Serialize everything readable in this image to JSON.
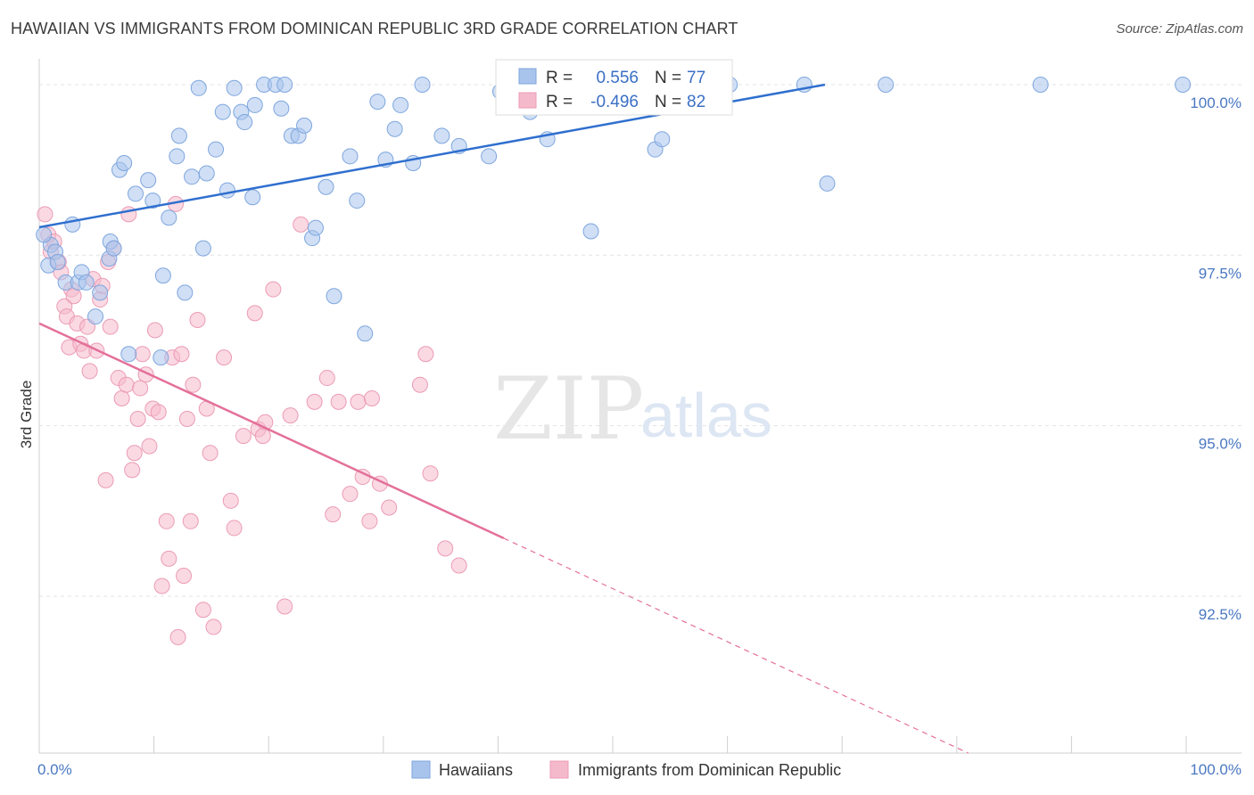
{
  "header": {
    "title": "HAWAIIAN VS IMMIGRANTS FROM DOMINICAN REPUBLIC 3RD GRADE CORRELATION CHART",
    "source": "Source: ZipAtlas.com"
  },
  "watermark": {
    "zip": "ZIP",
    "atlas": "atlas"
  },
  "colors": {
    "blue_fill": "#a9c4ec",
    "blue_stroke": "#7ea6de",
    "blue_line": "#2f6fcf",
    "pink_fill": "#f5b9cc",
    "pink_stroke": "#ec9bb5",
    "pink_line": "#e4709a",
    "grid": "#e3e3e3",
    "axis_text": "#4a78c2"
  },
  "legend_box": {
    "rows": [
      {
        "r_label": "R = ",
        "r_value": "0.556",
        "n_label": "N = ",
        "n_value": "77"
      },
      {
        "r_label": "R = ",
        "r_value": "-0.496",
        "n_label": "N = ",
        "n_value": "82"
      }
    ]
  },
  "chart_data": {
    "type": "scatter",
    "title": "HAWAIIAN VS IMMIGRANTS FROM DOMINICAN REPUBLIC 3RD GRADE CORRELATION CHART",
    "ylabel": "3rd Grade",
    "xlabel": "",
    "xlim": [
      0,
      100
    ],
    "ylim": [
      90.2,
      100.3
    ],
    "x_tick_labels": [
      "0.0%",
      "100.0%"
    ],
    "y_ticks": [
      92.5,
      95.0,
      97.5,
      100.0
    ],
    "y_tick_labels": [
      "92.5%",
      "95.0%",
      "97.5%",
      "100.0%"
    ],
    "grid": true,
    "legend_position": "bottom-center",
    "series": [
      {
        "name": "Hawaiians",
        "r": 0.556,
        "n": 77,
        "trend": {
          "x0": 0,
          "y0": 97.91,
          "x1": 68.5,
          "y1": 100.0
        },
        "points": [
          [
            0.8,
            97.35
          ],
          [
            1.0,
            97.65
          ],
          [
            1.4,
            97.55
          ],
          [
            1.6,
            97.4
          ],
          [
            2.3,
            97.1
          ],
          [
            2.9,
            97.95
          ],
          [
            3.4,
            97.1
          ],
          [
            3.7,
            97.25
          ],
          [
            4.1,
            97.1
          ],
          [
            4.9,
            96.6
          ],
          [
            5.3,
            96.95
          ],
          [
            6.1,
            97.45
          ],
          [
            6.2,
            97.7
          ],
          [
            6.5,
            97.6
          ],
          [
            7.0,
            98.75
          ],
          [
            7.4,
            98.85
          ],
          [
            7.8,
            96.05
          ],
          [
            8.4,
            98.4
          ],
          [
            9.5,
            98.6
          ],
          [
            9.9,
            98.3
          ],
          [
            10.6,
            96.0
          ],
          [
            10.8,
            97.2
          ],
          [
            11.3,
            98.05
          ],
          [
            12.0,
            98.95
          ],
          [
            12.2,
            99.25
          ],
          [
            12.7,
            96.95
          ],
          [
            13.3,
            98.65
          ],
          [
            13.9,
            99.95
          ],
          [
            14.3,
            97.6
          ],
          [
            14.6,
            98.7
          ],
          [
            15.4,
            99.05
          ],
          [
            16.0,
            99.6
          ],
          [
            16.4,
            98.45
          ],
          [
            17.0,
            99.95
          ],
          [
            17.6,
            99.6
          ],
          [
            17.9,
            99.45
          ],
          [
            18.6,
            98.35
          ],
          [
            18.8,
            99.7
          ],
          [
            19.6,
            100.0
          ],
          [
            20.6,
            100.0
          ],
          [
            21.1,
            99.65
          ],
          [
            21.4,
            100.0
          ],
          [
            22.0,
            99.25
          ],
          [
            22.6,
            99.25
          ],
          [
            23.1,
            99.4
          ],
          [
            23.8,
            97.75
          ],
          [
            24.1,
            97.9
          ],
          [
            25.0,
            98.5
          ],
          [
            25.7,
            96.9
          ],
          [
            27.1,
            98.95
          ],
          [
            27.7,
            98.3
          ],
          [
            28.4,
            96.35
          ],
          [
            29.5,
            99.75
          ],
          [
            30.2,
            98.9
          ],
          [
            31.0,
            99.35
          ],
          [
            31.5,
            99.7
          ],
          [
            32.6,
            98.85
          ],
          [
            33.4,
            100.0
          ],
          [
            35.1,
            99.25
          ],
          [
            36.6,
            99.1
          ],
          [
            39.2,
            98.95
          ],
          [
            40.2,
            99.9
          ],
          [
            42.8,
            99.6
          ],
          [
            44.3,
            99.2
          ],
          [
            47.3,
            100.0
          ],
          [
            48.1,
            97.85
          ],
          [
            49.7,
            100.0
          ],
          [
            53.7,
            99.05
          ],
          [
            54.3,
            99.2
          ],
          [
            56.2,
            100.0
          ],
          [
            60.2,
            100.0
          ],
          [
            66.7,
            100.0
          ],
          [
            68.7,
            98.55
          ],
          [
            73.8,
            100.0
          ],
          [
            87.3,
            100.0
          ],
          [
            99.7,
            100.0
          ],
          [
            0.4,
            97.8
          ]
        ]
      },
      {
        "name": "Immigrants from Dominican Republic",
        "r": -0.496,
        "n": 82,
        "trend": {
          "x0": 0,
          "y0": 96.5,
          "x1": 40.5,
          "y1": 93.35,
          "dash_x1": 81.0,
          "dash_y1": 90.2
        },
        "points": [
          [
            0.5,
            98.1
          ],
          [
            0.8,
            97.8
          ],
          [
            1.0,
            97.55
          ],
          [
            1.3,
            97.7
          ],
          [
            1.7,
            97.4
          ],
          [
            1.9,
            97.25
          ],
          [
            2.2,
            96.75
          ],
          [
            2.4,
            96.6
          ],
          [
            2.6,
            96.15
          ],
          [
            2.8,
            97.0
          ],
          [
            3.0,
            96.9
          ],
          [
            3.3,
            96.5
          ],
          [
            3.6,
            96.2
          ],
          [
            3.9,
            96.1
          ],
          [
            4.2,
            96.45
          ],
          [
            4.4,
            95.8
          ],
          [
            4.7,
            97.15
          ],
          [
            5.0,
            96.1
          ],
          [
            5.3,
            96.85
          ],
          [
            5.5,
            97.05
          ],
          [
            5.8,
            94.2
          ],
          [
            6.0,
            97.4
          ],
          [
            6.2,
            96.45
          ],
          [
            6.5,
            97.6
          ],
          [
            6.9,
            95.7
          ],
          [
            7.2,
            95.4
          ],
          [
            7.6,
            95.6
          ],
          [
            7.8,
            98.1
          ],
          [
            8.1,
            94.35
          ],
          [
            8.3,
            94.6
          ],
          [
            8.6,
            95.1
          ],
          [
            8.8,
            95.55
          ],
          [
            9.0,
            96.05
          ],
          [
            9.3,
            95.75
          ],
          [
            9.6,
            94.7
          ],
          [
            9.9,
            95.25
          ],
          [
            10.1,
            96.4
          ],
          [
            10.4,
            95.2
          ],
          [
            10.7,
            92.65
          ],
          [
            11.1,
            93.6
          ],
          [
            11.3,
            93.05
          ],
          [
            11.6,
            96.0
          ],
          [
            11.9,
            98.25
          ],
          [
            12.1,
            91.9
          ],
          [
            12.4,
            96.05
          ],
          [
            12.6,
            92.8
          ],
          [
            12.9,
            95.1
          ],
          [
            13.2,
            93.6
          ],
          [
            13.4,
            95.6
          ],
          [
            13.8,
            96.55
          ],
          [
            14.3,
            92.3
          ],
          [
            14.6,
            95.25
          ],
          [
            14.9,
            94.6
          ],
          [
            15.2,
            92.05
          ],
          [
            16.1,
            96.0
          ],
          [
            16.7,
            93.9
          ],
          [
            17.0,
            93.5
          ],
          [
            17.8,
            94.85
          ],
          [
            18.8,
            96.65
          ],
          [
            19.1,
            94.95
          ],
          [
            19.7,
            95.05
          ],
          [
            20.4,
            97.0
          ],
          [
            21.4,
            92.35
          ],
          [
            21.9,
            95.15
          ],
          [
            22.8,
            97.95
          ],
          [
            24.0,
            95.35
          ],
          [
            25.1,
            95.7
          ],
          [
            25.6,
            93.7
          ],
          [
            26.1,
            95.35
          ],
          [
            27.1,
            94.0
          ],
          [
            27.8,
            95.35
          ],
          [
            28.2,
            94.25
          ],
          [
            28.8,
            93.6
          ],
          [
            29.0,
            95.4
          ],
          [
            29.7,
            94.15
          ],
          [
            30.5,
            93.8
          ],
          [
            33.2,
            95.6
          ],
          [
            33.7,
            96.05
          ],
          [
            34.1,
            94.3
          ],
          [
            35.4,
            93.2
          ],
          [
            36.6,
            92.95
          ],
          [
            19.5,
            94.85
          ]
        ]
      }
    ]
  }
}
